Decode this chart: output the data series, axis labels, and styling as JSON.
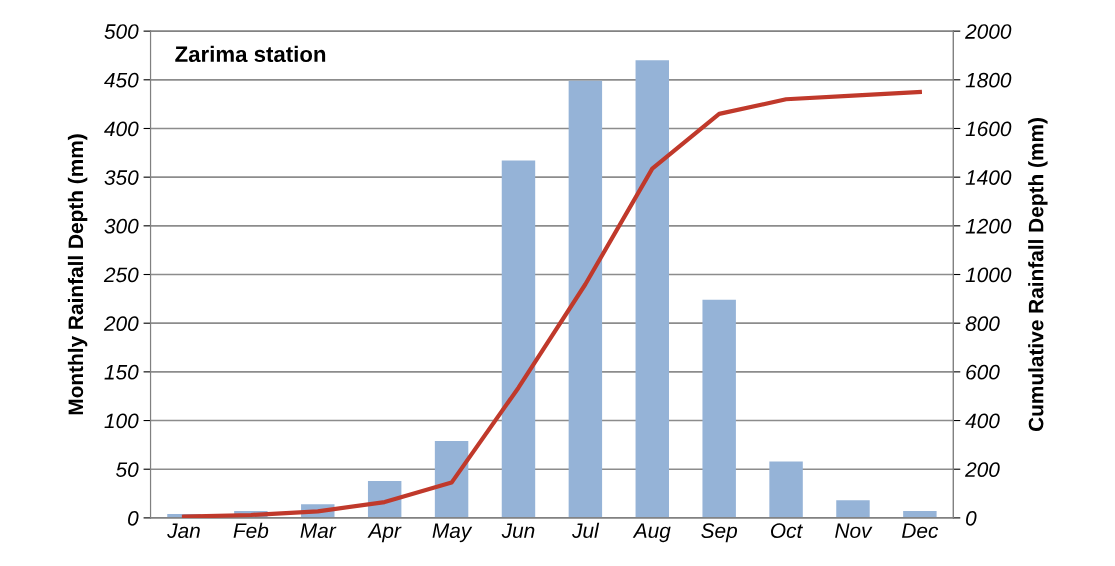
{
  "chart_data": {
    "type": "bar",
    "title": "Zarima station",
    "ylabel": "Monthly Rainfall Depth (mm)",
    "y2label": "Cumulative Rainfall Depth (mm)",
    "categories": [
      "Jan",
      "Feb",
      "Mar",
      "Apr",
      "May",
      "Jun",
      "Jul",
      "Aug",
      "Sep",
      "Oct",
      "Nov",
      "Dec"
    ],
    "series": [
      {
        "color": "#95b3d7",
        "values": [
          4,
          7,
          14,
          38,
          79,
          367,
          449,
          470,
          224,
          58,
          18,
          7
        ]
      },
      {
        "type": "line",
        "axis": "y2",
        "color": "#c0392b",
        "values": [
          5,
          12,
          27,
          65,
          145,
          535,
          960,
          1435,
          1660,
          1720,
          1735,
          1750
        ]
      }
    ],
    "ylim": [
      0,
      500
    ],
    "yticks": [
      0,
      50,
      100,
      150,
      200,
      250,
      300,
      350,
      400,
      450,
      500
    ],
    "y2lim": [
      0,
      2000
    ],
    "y2ticks": [
      0,
      200,
      400,
      600,
      800,
      1000,
      1200,
      1400,
      1600,
      1800,
      2000
    ],
    "grid": "y",
    "marker": "none",
    "line_style": "solid"
  }
}
